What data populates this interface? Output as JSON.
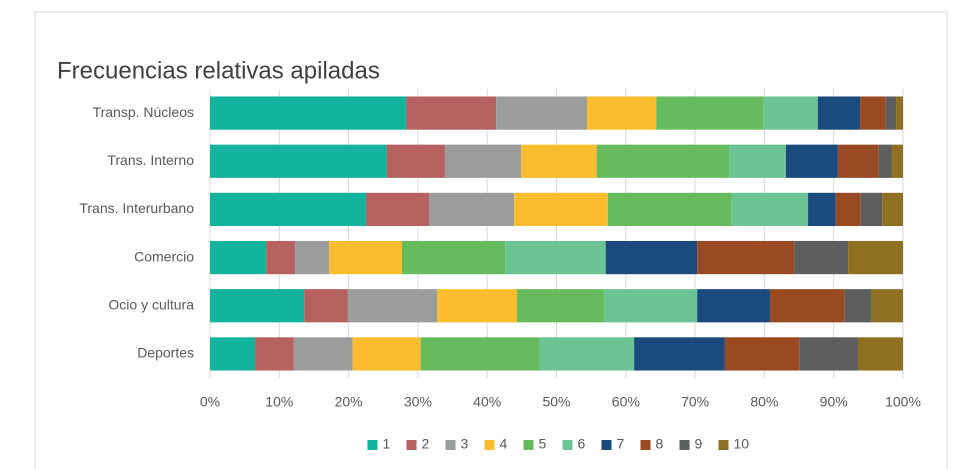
{
  "chart_data": {
    "type": "stacked_barh",
    "title": "Frecuencias relativas apiladas",
    "categories": [
      "Transp. Núcleos",
      "Trans. Interno",
      "Trans. Interurbano",
      "Comercio",
      "Ocio y cultura",
      "Deportes"
    ],
    "series": [
      {
        "name": "1",
        "color": "#13b39d",
        "values": [
          28.3,
          25.5,
          22.5,
          8.1,
          13.6,
          6.5
        ]
      },
      {
        "name": "2",
        "color": "#b5615f",
        "values": [
          13.0,
          8.4,
          9.1,
          4.2,
          6.3,
          5.6
        ]
      },
      {
        "name": "3",
        "color": "#9a9d9c",
        "values": [
          13.1,
          11.0,
          12.3,
          4.9,
          12.9,
          8.5
        ]
      },
      {
        "name": "4",
        "color": "#fbbd2e",
        "values": [
          10.0,
          10.9,
          13.5,
          10.5,
          11.5,
          9.8
        ]
      },
      {
        "name": "5",
        "color": "#67bb5f",
        "values": [
          15.5,
          19.1,
          17.9,
          14.9,
          12.6,
          17.2
        ]
      },
      {
        "name": "6",
        "color": "#6cc395",
        "values": [
          7.8,
          8.2,
          11.0,
          14.5,
          13.4,
          13.6
        ]
      },
      {
        "name": "7",
        "color": "#1a4b7c",
        "values": [
          6.1,
          7.5,
          4.0,
          13.2,
          10.5,
          13.1
        ]
      },
      {
        "name": "8",
        "color": "#9a4a22",
        "values": [
          3.7,
          5.9,
          3.6,
          14.0,
          10.8,
          10.8
        ]
      },
      {
        "name": "9",
        "color": "#5d5e5e",
        "values": [
          1.5,
          1.9,
          3.1,
          7.8,
          3.9,
          8.4
        ]
      },
      {
        "name": "10",
        "color": "#8f6f22",
        "values": [
          1.0,
          1.6,
          3.0,
          7.9,
          4.5,
          6.5
        ]
      }
    ],
    "xlim": [
      0,
      100
    ],
    "xticks": [
      {
        "value": 0,
        "label": "0%"
      },
      {
        "value": 10,
        "label": "10%"
      },
      {
        "value": 20,
        "label": "20%"
      },
      {
        "value": 30,
        "label": "30%"
      },
      {
        "value": 40,
        "label": "40%"
      },
      {
        "value": 50,
        "label": "50%"
      },
      {
        "value": 60,
        "label": "60%"
      },
      {
        "value": 70,
        "label": "70%"
      },
      {
        "value": 80,
        "label": "80%"
      },
      {
        "value": 90,
        "label": "90%"
      },
      {
        "value": 100,
        "label": "100%"
      }
    ],
    "grid": true,
    "legend": "bottom"
  }
}
